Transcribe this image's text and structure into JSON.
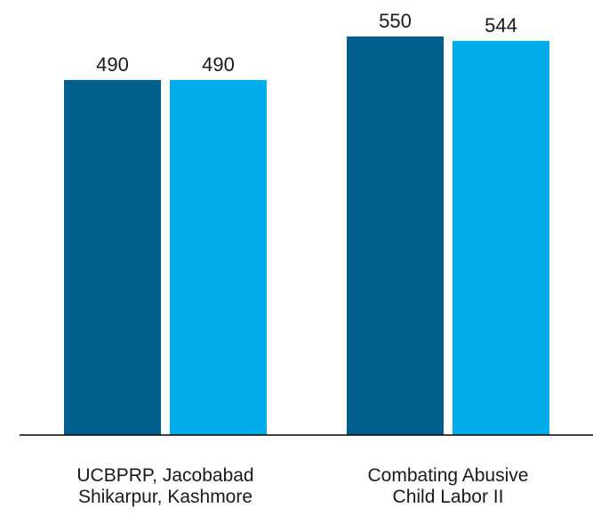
{
  "chart_data": {
    "type": "bar",
    "categories": [
      [
        "UCBPRP, Jacobabad",
        "Shikarpur, Kashmore"
      ],
      [
        "Combating Abusive",
        "Child Labor II"
      ]
    ],
    "series": [
      {
        "values": [
          490,
          550
        ],
        "color": "#005f8f"
      },
      {
        "values": [
          490,
          544
        ],
        "color": "#00adeb"
      }
    ],
    "ylim": [
      0,
      550
    ],
    "grid": false,
    "legend": "none",
    "data_labels": true,
    "baseline_color": "#000000"
  }
}
